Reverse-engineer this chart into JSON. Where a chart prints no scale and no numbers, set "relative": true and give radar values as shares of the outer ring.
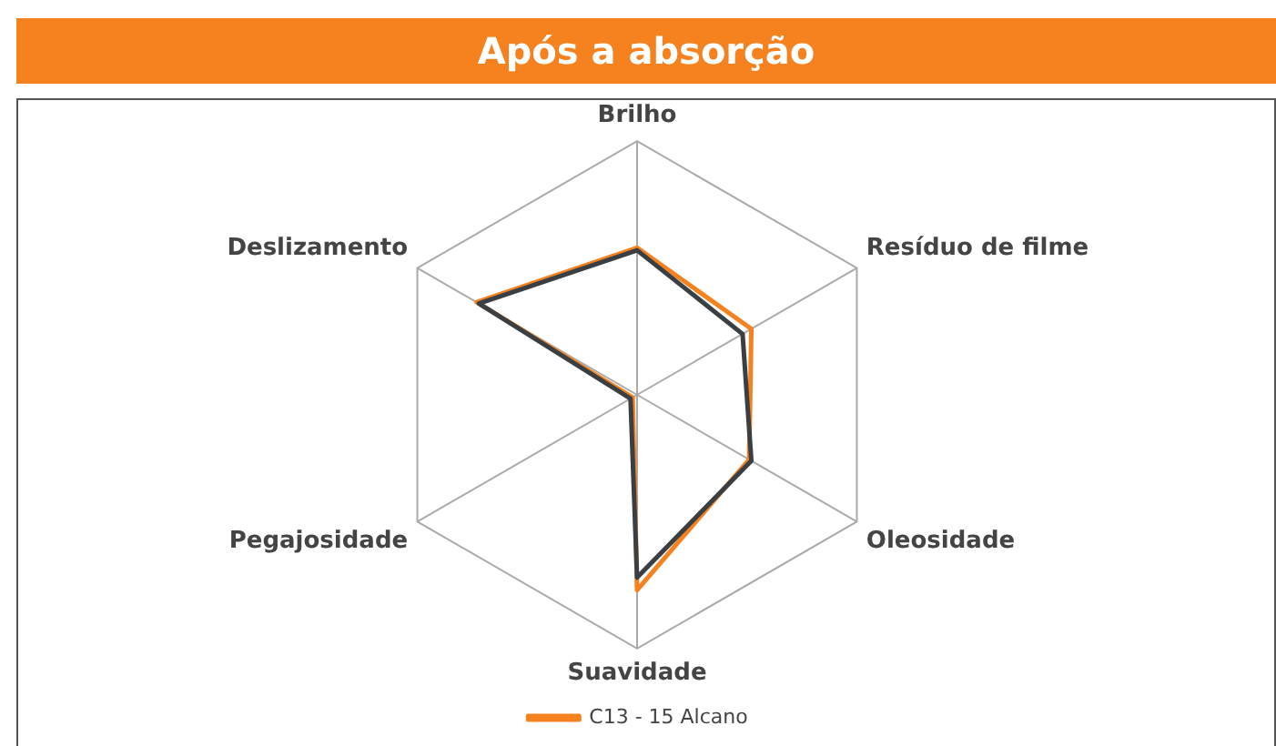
{
  "chart_data": {
    "type": "radar",
    "title": "Após a absorção",
    "relative": true,
    "legend": "bottom",
    "marker": "none",
    "categories": [
      "Brilho",
      "Resíduo de filme",
      "Oleosidade",
      "Suavidade",
      "Pegajosidade",
      "Deslizamento"
    ],
    "series": [
      {
        "color": "#3a3f44",
        "values": [
          0.57,
          0.48,
          0.52,
          0.72,
          0.03,
          0.72
        ]
      },
      {
        "name": "C13 - 15 Alcano",
        "color": "#f5821f",
        "values": [
          0.58,
          0.52,
          0.51,
          0.77,
          0.02,
          0.73
        ]
      }
    ]
  }
}
